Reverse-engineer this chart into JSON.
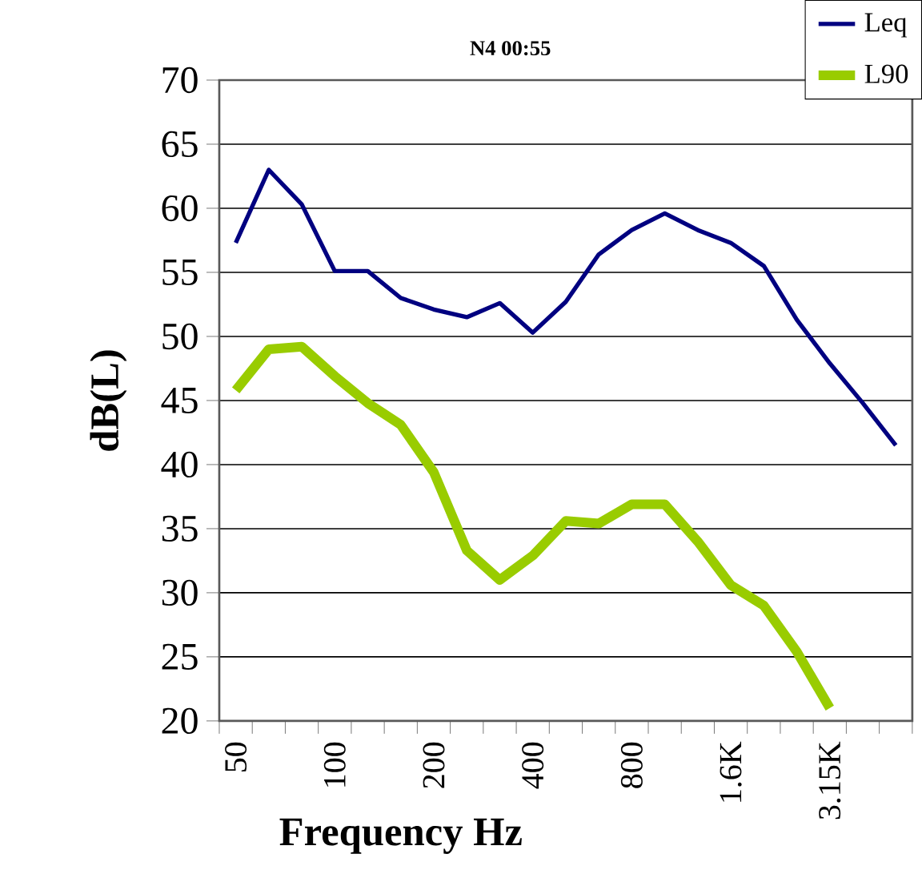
{
  "chart_data": {
    "type": "line",
    "title": "N4  00:55",
    "xlabel": "Frequency Hz",
    "ylabel": "dB(L)",
    "categories": [
      "50",
      null,
      null,
      "100",
      null,
      null,
      "200",
      null,
      null,
      "400",
      null,
      null,
      "800",
      null,
      null,
      "1.6K",
      null,
      null,
      "3.15K",
      null,
      null
    ],
    "ylim": [
      20,
      70
    ],
    "yticks": [
      20,
      25,
      30,
      35,
      40,
      45,
      50,
      55,
      60,
      65,
      70
    ],
    "grid": "y",
    "legend": "top right",
    "series": [
      {
        "name": "Leq",
        "color": "#000080",
        "values": [
          57.3,
          63.0,
          60.3,
          55.1,
          55.1,
          53.0,
          52.1,
          51.5,
          52.6,
          50.3,
          52.7,
          56.4,
          58.3,
          59.6,
          58.3,
          57.3,
          55.5,
          51.3,
          47.9,
          44.8,
          41.5
        ]
      },
      {
        "name": "L90",
        "color": "#99cc00",
        "values": [
          45.8,
          49.0,
          49.2,
          46.9,
          44.8,
          43.1,
          39.4,
          33.3,
          31.0,
          32.9,
          35.6,
          35.4,
          36.9,
          36.9,
          34.0,
          30.6,
          29.0,
          25.4,
          21.0,
          null,
          null
        ]
      }
    ]
  }
}
